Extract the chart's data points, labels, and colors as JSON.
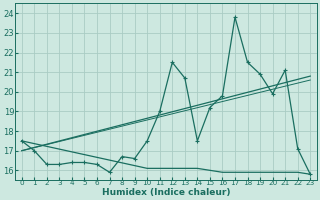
{
  "xlabel": "Humidex (Indice chaleur)",
  "bg_color": "#cde8e0",
  "grid_color": "#aaccc4",
  "line_color": "#1a6e60",
  "xlim": [
    -0.5,
    23.5
  ],
  "ylim": [
    15.5,
    24.5
  ],
  "yticks": [
    16,
    17,
    18,
    19,
    20,
    21,
    22,
    23,
    24
  ],
  "xtick_labels": [
    "0",
    "1",
    "2",
    "3",
    "4",
    "5",
    "6",
    "7",
    "8",
    "9",
    "10",
    "11",
    "12",
    "13",
    "14",
    "15",
    "16",
    "17",
    "18",
    "19",
    "20",
    "21",
    "22",
    "23"
  ],
  "series1_x": [
    0,
    1,
    2,
    3,
    4,
    5,
    6,
    7,
    8,
    9,
    10,
    11,
    12,
    13,
    14,
    15,
    16,
    17,
    18,
    19,
    20,
    21,
    22,
    23
  ],
  "series1_y": [
    17.5,
    17.0,
    16.3,
    16.3,
    16.4,
    16.4,
    16.3,
    15.9,
    16.7,
    16.6,
    17.5,
    19.0,
    21.5,
    20.7,
    17.5,
    19.2,
    19.8,
    23.8,
    21.5,
    20.9,
    19.9,
    21.1,
    17.1,
    15.8
  ],
  "flat_x": [
    0,
    10,
    11,
    12,
    13,
    14,
    15,
    16,
    17,
    18,
    19,
    20,
    21,
    22,
    23
  ],
  "flat_y": [
    17.5,
    16.1,
    16.1,
    16.1,
    16.1,
    16.1,
    16.0,
    15.9,
    15.9,
    15.9,
    15.9,
    15.9,
    15.9,
    15.9,
    15.8
  ],
  "trend1_x": [
    0,
    23
  ],
  "trend1_y": [
    17.0,
    20.8
  ],
  "trend2_x": [
    0,
    23
  ],
  "trend2_y": [
    17.0,
    20.6
  ]
}
